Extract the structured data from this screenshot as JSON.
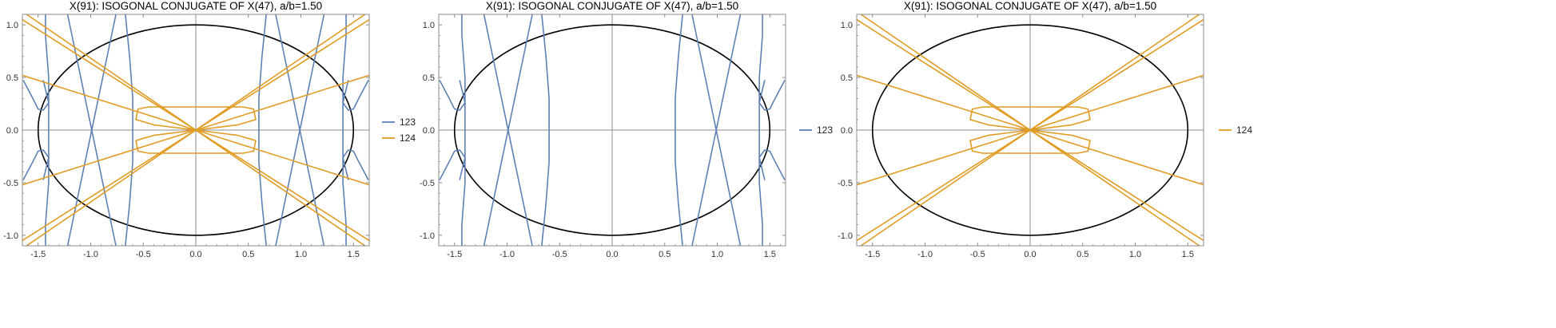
{
  "colors": {
    "series_123": "#5e81b5",
    "series_124": "#e19c24",
    "ellipse": "#000000",
    "axis": "#8c8c8c",
    "frame": "#8c8c8c",
    "text": "#000000"
  },
  "chart_data": [
    {
      "type": "line",
      "title": "X(91): ISOGONAL CONJUGATE OF X(47), a/b=1.50",
      "xlim": [
        -1.65,
        1.65
      ],
      "ylim": [
        -1.1,
        1.1
      ],
      "x_ticks": [
        "-1.5",
        "-1.0",
        "-0.5",
        "0.0",
        "0.5",
        "1.0",
        "1.5"
      ],
      "y_ticks": [
        "-1.0",
        "-0.5",
        "0.0",
        "0.5",
        "1.0"
      ],
      "ellipse": {
        "a": 1.5,
        "b": 1.0
      },
      "legend_position": "right",
      "series": [
        {
          "name": "123",
          "color_key": "series_123",
          "shown": true
        },
        {
          "name": "124",
          "color_key": "series_124",
          "shown": true
        }
      ]
    },
    {
      "type": "line",
      "title": "X(91): ISOGONAL CONJUGATE OF X(47), a/b=1.50",
      "xlim": [
        -1.65,
        1.65
      ],
      "ylim": [
        -1.1,
        1.1
      ],
      "x_ticks": [
        "-1.5",
        "-1.0",
        "-0.5",
        "0.0",
        "0.5",
        "1.0",
        "1.5"
      ],
      "y_ticks": [
        "-1.0",
        "-0.5",
        "0.0",
        "0.5",
        "1.0"
      ],
      "ellipse": {
        "a": 1.5,
        "b": 1.0
      },
      "legend_position": "right",
      "series": [
        {
          "name": "123",
          "color_key": "series_123",
          "shown": true
        }
      ]
    },
    {
      "type": "line",
      "title": "X(91): ISOGONAL CONJUGATE OF X(47), a/b=1.50",
      "xlim": [
        -1.65,
        1.65
      ],
      "ylim": [
        -1.1,
        1.1
      ],
      "x_ticks": [
        "-1.5",
        "-1.0",
        "-0.5",
        "0.0",
        "0.5",
        "1.0",
        "1.5"
      ],
      "y_ticks": [
        "-1.0",
        "-0.5",
        "0.0",
        "0.5",
        "1.0"
      ],
      "ellipse": {
        "a": 1.5,
        "b": 1.0
      },
      "legend_position": "right",
      "series": [
        {
          "name": "124",
          "color_key": "series_124",
          "shown": true
        }
      ]
    }
  ],
  "curves": {
    "series_123": [
      [
        [
          -1.64,
          0.47
        ],
        [
          -1.55,
          0.3
        ],
        [
          -1.5,
          0.2
        ],
        [
          -1.45,
          0.19
        ],
        [
          -1.4,
          0.26
        ],
        [
          -1.45,
          0.47
        ]
      ],
      [
        [
          -1.64,
          -0.47
        ],
        [
          -1.55,
          -0.3
        ],
        [
          -1.5,
          -0.2
        ],
        [
          -1.45,
          -0.19
        ],
        [
          -1.4,
          -0.26
        ],
        [
          -1.45,
          -0.47
        ]
      ],
      [
        [
          1.64,
          0.47
        ],
        [
          1.55,
          0.3
        ],
        [
          1.5,
          0.2
        ],
        [
          1.45,
          0.19
        ],
        [
          1.4,
          0.26
        ],
        [
          1.45,
          0.47
        ]
      ],
      [
        [
          1.64,
          -0.47
        ],
        [
          1.55,
          -0.3
        ],
        [
          1.5,
          -0.2
        ],
        [
          1.45,
          -0.19
        ],
        [
          1.4,
          -0.26
        ],
        [
          1.45,
          -0.47
        ]
      ],
      [
        [
          -1.43,
          1.1
        ],
        [
          -1.43,
          0.9
        ],
        [
          -1.4,
          0.5
        ],
        [
          -1.4,
          -0.5
        ],
        [
          -1.43,
          -0.9
        ],
        [
          -1.43,
          -1.1
        ]
      ],
      [
        [
          1.43,
          1.1
        ],
        [
          1.43,
          0.9
        ],
        [
          1.4,
          0.5
        ],
        [
          1.4,
          -0.5
        ],
        [
          1.43,
          -0.9
        ],
        [
          1.43,
          -1.1
        ]
      ],
      [
        [
          -1.22,
          1.1
        ],
        [
          -0.76,
          -1.1
        ]
      ],
      [
        [
          -0.76,
          1.1
        ],
        [
          -1.22,
          -1.1
        ]
      ],
      [
        [
          1.22,
          1.1
        ],
        [
          0.76,
          -1.1
        ]
      ],
      [
        [
          0.76,
          1.1
        ],
        [
          1.22,
          -1.1
        ]
      ],
      [
        [
          -0.67,
          1.1
        ],
        [
          -0.63,
          0.7
        ],
        [
          -0.6,
          0.3
        ],
        [
          -0.6,
          -0.3
        ],
        [
          -0.63,
          -0.7
        ],
        [
          -0.67,
          -1.1
        ]
      ],
      [
        [
          0.67,
          1.1
        ],
        [
          0.63,
          0.7
        ],
        [
          0.6,
          0.3
        ],
        [
          0.6,
          -0.3
        ],
        [
          0.63,
          -0.7
        ],
        [
          0.67,
          -1.1
        ]
      ]
    ],
    "series_124": [
      [
        [
          -1.61,
          1.1
        ],
        [
          1.61,
          -1.1
        ]
      ],
      [
        [
          -1.65,
          1.05
        ],
        [
          1.65,
          -1.05
        ]
      ],
      [
        [
          1.61,
          1.1
        ],
        [
          -1.61,
          -1.1
        ]
      ],
      [
        [
          1.65,
          1.05
        ],
        [
          -1.65,
          -1.05
        ]
      ],
      [
        [
          -1.65,
          0.52
        ],
        [
          1.65,
          -0.52
        ]
      ],
      [
        [
          1.65,
          0.52
        ],
        [
          -1.65,
          -0.52
        ]
      ],
      [
        [
          -0.55,
          0.2
        ],
        [
          -0.45,
          0.22
        ],
        [
          0.0,
          0.22
        ],
        [
          0.45,
          0.22
        ],
        [
          0.55,
          0.2
        ],
        [
          0.57,
          0.1
        ],
        [
          0.4,
          0.05
        ],
        [
          0.0,
          0.0
        ],
        [
          -0.4,
          0.05
        ],
        [
          -0.57,
          0.1
        ],
        [
          -0.55,
          0.2
        ]
      ],
      [
        [
          -0.55,
          -0.2
        ],
        [
          -0.45,
          -0.22
        ],
        [
          0.0,
          -0.22
        ],
        [
          0.45,
          -0.22
        ],
        [
          0.55,
          -0.2
        ],
        [
          0.57,
          -0.1
        ],
        [
          0.4,
          -0.05
        ],
        [
          0.0,
          0.0
        ],
        [
          -0.4,
          -0.05
        ],
        [
          -0.57,
          -0.1
        ],
        [
          -0.55,
          -0.2
        ]
      ]
    ]
  }
}
